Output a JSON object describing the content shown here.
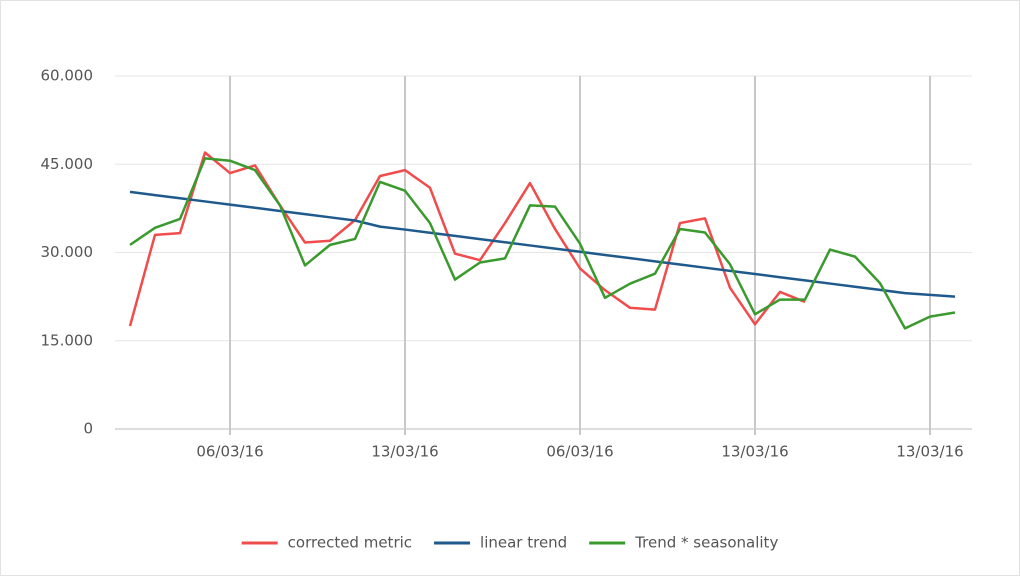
{
  "chart_data": {
    "type": "line",
    "categories": [
      null,
      null,
      null,
      null,
      "06/03/16",
      null,
      null,
      null,
      null,
      null,
      null,
      "13/03/16",
      null,
      null,
      null,
      null,
      null,
      null,
      "06/03/16",
      null,
      null,
      null,
      null,
      null,
      null,
      "13/03/16",
      null,
      null,
      null,
      null,
      null,
      null,
      "13/03/16",
      null
    ],
    "series": [
      {
        "name": "corrected metric",
        "color": "#f04c4c",
        "values": [
          17500,
          33000,
          33300,
          47000,
          43500,
          44800,
          38000,
          31700,
          32000,
          35500,
          43000,
          44000,
          41000,
          29800,
          28700,
          35000,
          41800,
          34000,
          27300,
          23600,
          20600,
          20300,
          35000,
          35800,
          24000,
          17800,
          23300,
          21600,
          null,
          null,
          null,
          null,
          null,
          null
        ]
      },
      {
        "name": "linear trend",
        "color": "#1f5a8c",
        "values": [
          40300,
          39760,
          39220,
          38680,
          38140,
          37600,
          37060,
          36520,
          35980,
          35440,
          34400,
          33900,
          33360,
          32820,
          32280,
          31740,
          31200,
          30660,
          30120,
          29580,
          29040,
          28500,
          27960,
          27420,
          26880,
          26340,
          25800,
          25260,
          24720,
          24180,
          23640,
          23100,
          22800,
          22500
        ]
      },
      {
        "name": "Trend * seasonality",
        "color": "#3a9a2e",
        "values": [
          31300,
          34200,
          35700,
          46000,
          45600,
          44000,
          38000,
          27800,
          31300,
          32300,
          42000,
          40500,
          35000,
          25400,
          28300,
          29000,
          38000,
          37800,
          31500,
          22300,
          24700,
          26400,
          34000,
          33400,
          28000,
          19500,
          22000,
          22000,
          30500,
          29300,
          24800,
          17100,
          19100,
          19800
        ]
      }
    ],
    "ylim": [
      0,
      60000
    ],
    "yticks": [
      0,
      {
        "value": 15000,
        "label": "15.000"
      },
      {
        "value": 30000,
        "label": "30.000"
      },
      {
        "value": 45000,
        "label": "45.000"
      },
      {
        "value": 60000,
        "label": "60.000"
      }
    ],
    "grid": true,
    "legend": "bottom"
  }
}
